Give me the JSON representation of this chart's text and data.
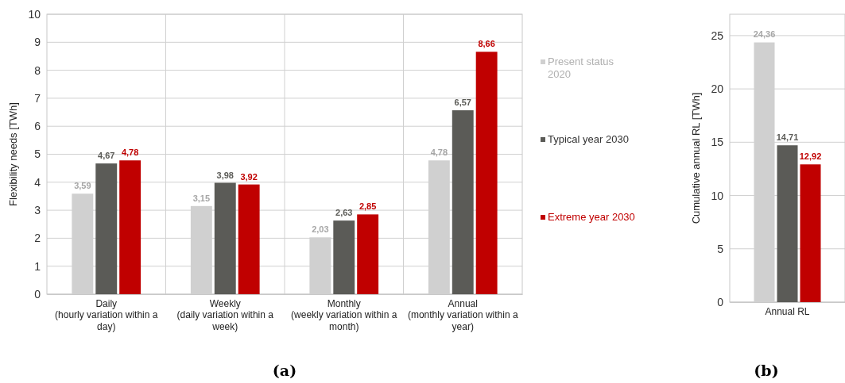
{
  "chart_data": [
    {
      "type": "bar",
      "title": "(a)",
      "ylabel": "Flexibility needs [TWh]",
      "categories": [
        "Daily\n(hourly variation within a day)",
        "Weekly\n(daily variation within a week)",
        "Monthly\n(weekly variation within a month)",
        "Annual\n(monthly variation within a year)"
      ],
      "series": [
        {
          "name": "Present status 2020",
          "color": "#d0d0d0",
          "values": [
            3.59,
            3.15,
            2.03,
            4.78
          ],
          "value_labels": [
            "3,59",
            "3,15",
            "2,03",
            "4,78"
          ]
        },
        {
          "name": "Typical year 2030",
          "color": "#5b5b57",
          "values": [
            4.67,
            3.98,
            2.63,
            6.57
          ],
          "value_labels": [
            "4,67",
            "3,98",
            "2,63",
            "6,57"
          ]
        },
        {
          "name": "Extreme year 2030",
          "color": "#c00000",
          "values": [
            4.78,
            3.92,
            2.85,
            8.66
          ],
          "value_labels": [
            "4,78",
            "3,92",
            "2,85",
            "8,66"
          ]
        }
      ],
      "ylim": [
        0,
        10
      ],
      "yticks": [
        0,
        1,
        2,
        3,
        4,
        5,
        6,
        7,
        8,
        9,
        10
      ],
      "grid": true,
      "legend": "right"
    },
    {
      "type": "bar",
      "title": "(b)",
      "ylabel": "Cumulative annual RL [TWh]",
      "categories": [
        "Annual RL"
      ],
      "series": [
        {
          "color": "#d0d0d0",
          "values": [
            24.36
          ],
          "value_labels": [
            "24,36"
          ]
        },
        {
          "color": "#5b5b57",
          "values": [
            14.71
          ],
          "value_labels": [
            "14,71"
          ]
        },
        {
          "color": "#c00000",
          "values": [
            12.92
          ],
          "value_labels": [
            "12,92"
          ]
        }
      ],
      "ylim": [
        0,
        27
      ],
      "yticks": [
        0,
        5,
        10,
        15,
        20,
        25
      ],
      "grid": "y"
    }
  ]
}
